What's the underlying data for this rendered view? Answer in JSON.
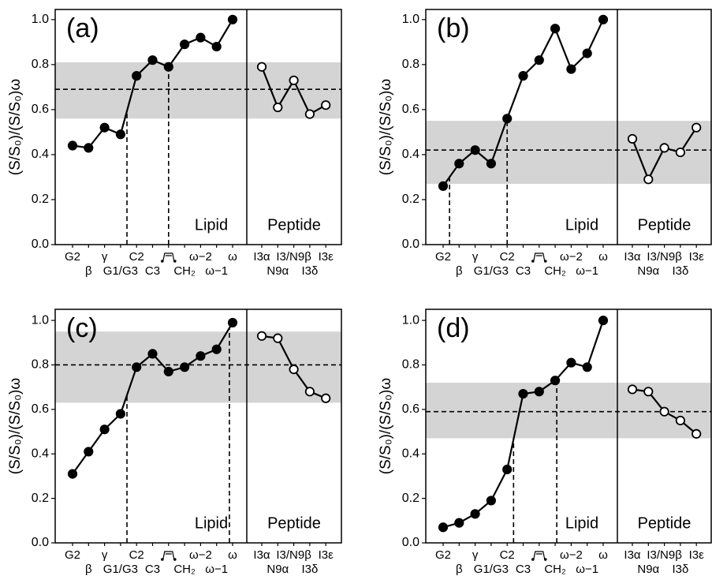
{
  "chart_data": [
    {
      "type": "line",
      "panel": "(a)",
      "ylabel": "(S/S₀)/(S/S₀)ω",
      "categories": [
        "G2",
        "β",
        "γ",
        "G1/G3",
        "C2",
        "C3",
        null,
        "CH₂",
        "ω−2",
        "ω−1",
        "ω",
        "I3α",
        "N9α",
        "I3/N9β",
        "I3δ",
        "I3ε"
      ],
      "series": [
        {
          "name": "Lipid",
          "color": "#000000",
          "filled": true,
          "values": [
            0.44,
            0.43,
            0.52,
            0.49,
            0.75,
            0.82,
            0.79,
            0.89,
            0.92,
            0.88,
            1.0,
            null,
            null,
            null,
            null,
            null
          ]
        },
        {
          "name": "Peptide",
          "color": "#000000",
          "filled": false,
          "values": [
            null,
            null,
            null,
            null,
            null,
            null,
            null,
            null,
            null,
            null,
            null,
            0.79,
            0.61,
            0.73,
            0.58,
            0.62
          ]
        }
      ],
      "band": [
        0.56,
        0.81
      ],
      "mean": 0.69,
      "vlines": [
        3.4,
        6
      ],
      "ylim": [
        0,
        1.045
      ],
      "yticks": [
        {
          "value": 0,
          "label": "0.0"
        },
        {
          "value": 0.2,
          "label": "0.2"
        },
        {
          "value": 0.4,
          "label": "0.4"
        },
        {
          "value": 0.6,
          "label": "0.6"
        },
        {
          "value": 0.8,
          "label": "0.8"
        },
        {
          "value": 1,
          "label": "1.0"
        }
      ]
    },
    {
      "type": "line",
      "panel": "(b)",
      "ylabel": "(S/S₀)/(S/S₀)ω",
      "categories": [
        "G2",
        "β",
        "γ",
        "G1/G3",
        "C2",
        "C3",
        null,
        "CH₂",
        "ω−2",
        "ω−1",
        "ω",
        "I3α",
        "N9α",
        "I3/N9β",
        "I3δ",
        "I3ε"
      ],
      "series": [
        {
          "name": "Lipid",
          "color": "#000000",
          "filled": true,
          "values": [
            0.26,
            0.36,
            0.42,
            0.36,
            0.56,
            0.75,
            0.82,
            0.96,
            0.78,
            0.85,
            1.0,
            null,
            null,
            null,
            null,
            null
          ]
        },
        {
          "name": "Peptide",
          "color": "#000000",
          "filled": false,
          "values": [
            null,
            null,
            null,
            null,
            null,
            null,
            null,
            null,
            null,
            null,
            null,
            0.47,
            0.29,
            0.43,
            0.41,
            0.52
          ]
        }
      ],
      "band": [
        0.27,
        0.55
      ],
      "mean": 0.42,
      "vlines": [
        0.4,
        4
      ],
      "ylim": [
        0,
        1.045
      ],
      "yticks": [
        {
          "value": 0,
          "label": "0.0"
        },
        {
          "value": 0.2,
          "label": "0.2"
        },
        {
          "value": 0.4,
          "label": "0.4"
        },
        {
          "value": 0.6,
          "label": "0.6"
        },
        {
          "value": 0.8,
          "label": "0.8"
        },
        {
          "value": 1,
          "label": "1.0"
        }
      ]
    },
    {
      "type": "line",
      "panel": "(c)",
      "ylabel": "(S/S₀)/(S/S₀)ω",
      "categories": [
        "G2",
        "β",
        "γ",
        "G1/G3",
        "C2",
        "C3",
        null,
        "CH₂",
        "ω−2",
        "ω−1",
        "ω",
        "I3α",
        "N9α",
        "I3/N9β",
        "I3δ",
        "I3ε"
      ],
      "series": [
        {
          "name": "Lipid",
          "color": "#000000",
          "filled": true,
          "values": [
            0.31,
            0.41,
            0.51,
            0.58,
            0.79,
            0.85,
            0.77,
            0.79,
            0.84,
            0.87,
            0.99,
            null,
            null,
            null,
            null,
            null
          ]
        },
        {
          "name": "Peptide",
          "color": "#000000",
          "filled": false,
          "values": [
            null,
            null,
            null,
            null,
            null,
            null,
            null,
            null,
            null,
            null,
            null,
            0.93,
            0.92,
            0.78,
            0.68,
            0.65
          ]
        }
      ],
      "band": [
        0.63,
        0.95
      ],
      "mean": 0.8,
      "vlines": [
        3.4,
        9.8
      ],
      "ylim": [
        0,
        1.05
      ],
      "yticks": [
        {
          "value": 0,
          "label": "0.0"
        },
        {
          "value": 0.2,
          "label": "0.2"
        },
        {
          "value": 0.4,
          "label": "0.4"
        },
        {
          "value": 0.6,
          "label": "0.6"
        },
        {
          "value": 0.8,
          "label": "0.8"
        },
        {
          "value": 1,
          "label": "1.0"
        }
      ]
    },
    {
      "type": "line",
      "panel": "(d)",
      "ylabel": "(S/S₀)/(S/S₀)ω",
      "categories": [
        "G2",
        "β",
        "γ",
        "G1/G3",
        "C2",
        "C3",
        null,
        "CH₂",
        "ω−2",
        "ω−1",
        "ω",
        "I3α",
        "N9α",
        "I3/N9β",
        "I3δ",
        "I3ε"
      ],
      "series": [
        {
          "name": "Lipid",
          "color": "#000000",
          "filled": true,
          "values": [
            0.07,
            0.09,
            0.13,
            0.19,
            0.33,
            0.67,
            0.68,
            0.73,
            0.81,
            0.79,
            1.0,
            null,
            null,
            null,
            null,
            null
          ]
        },
        {
          "name": "Peptide",
          "color": "#000000",
          "filled": false,
          "values": [
            null,
            null,
            null,
            null,
            null,
            null,
            null,
            null,
            null,
            null,
            null,
            0.69,
            0.68,
            0.59,
            0.55,
            0.49
          ]
        }
      ],
      "band": [
        0.47,
        0.72
      ],
      "mean": 0.59,
      "vlines": [
        4.4,
        7.1
      ],
      "ylim": [
        0,
        1.05
      ],
      "yticks": [
        {
          "value": 0,
          "label": "0.0"
        },
        {
          "value": 0.2,
          "label": "0.2"
        },
        {
          "value": 0.4,
          "label": "0.4"
        },
        {
          "value": 0.6,
          "label": "0.6"
        },
        {
          "value": 0.8,
          "label": "0.8"
        },
        {
          "value": 1,
          "label": "1.0"
        }
      ]
    }
  ]
}
